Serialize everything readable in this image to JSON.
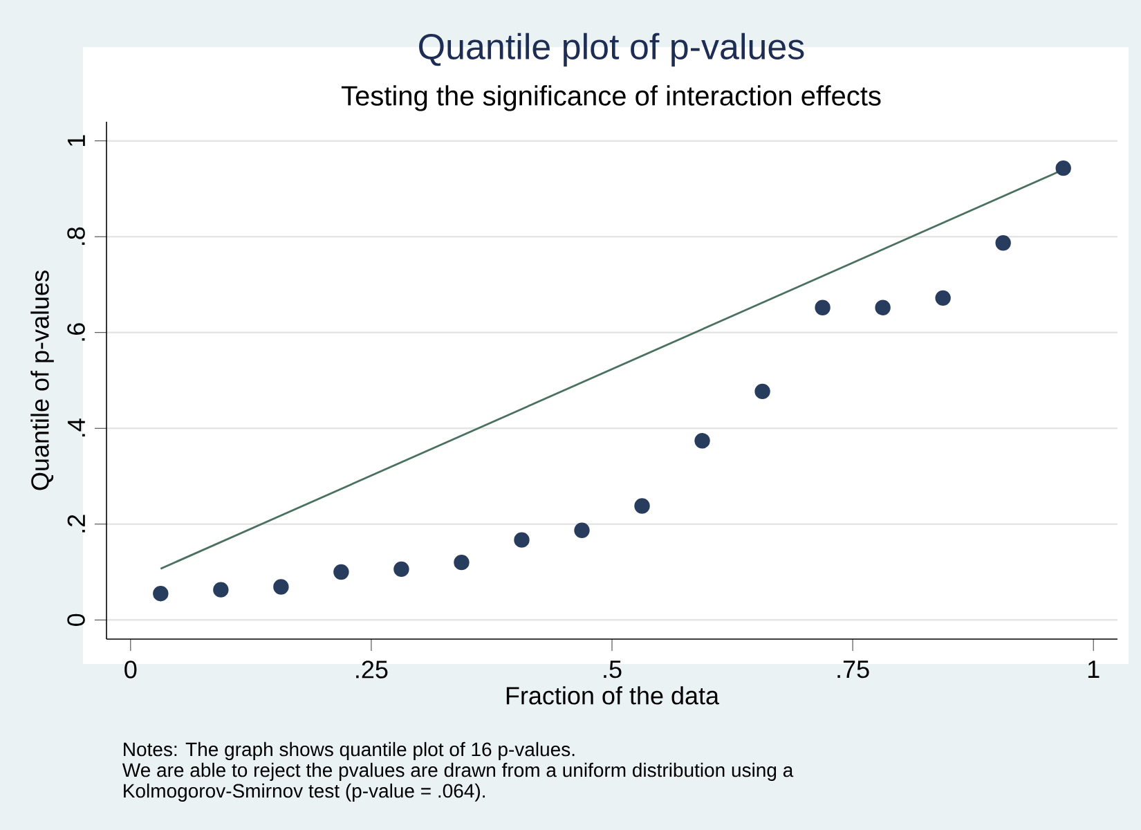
{
  "chart_data": {
    "type": "scatter",
    "title": "Quantile plot of p-values",
    "subtitle": "Testing the significance of interaction effects",
    "xlabel": "Fraction of the data",
    "ylabel": "Quantile of p-values",
    "x": [
      0.03125,
      0.09375,
      0.15625,
      0.21875,
      0.28125,
      0.34375,
      0.40625,
      0.46875,
      0.53125,
      0.59375,
      0.65625,
      0.71875,
      0.78125,
      0.84375,
      0.90625,
      0.96875
    ],
    "series": [
      {
        "marker": "circle",
        "color": "#283c5e",
        "values": [
          0.055,
          0.063,
          0.069,
          0.1,
          0.106,
          0.12,
          0.167,
          0.187,
          0.238,
          0.374,
          0.477,
          0.652,
          0.652,
          0.672,
          0.787,
          0.943
        ]
      },
      {
        "type": "line",
        "marker": "none",
        "color": "#4a7060",
        "x": [
          0.03125,
          0.96875
        ],
        "values": [
          0.107,
          0.94
        ]
      }
    ],
    "xlim": [
      -0.025,
      1.025
    ],
    "ylim": [
      -0.04,
      1.04
    ],
    "xticks": [
      0,
      {
        "value": 0.25,
        "label": ".25"
      },
      {
        "value": 0.5,
        "label": ".5"
      },
      {
        "value": 0.75,
        "label": ".75"
      },
      1
    ],
    "yticks": [
      0,
      {
        "value": 0.2,
        "label": ".2"
      },
      {
        "value": 0.4,
        "label": ".4"
      },
      {
        "value": 0.6,
        "label": ".6"
      },
      {
        "value": 0.8,
        "label": ".8"
      },
      1
    ],
    "grid": "y",
    "annotations": [
      "Notes: The graph shows quantile plot of 16 p-values.",
      "We are able to reject the pvalues are drawn from a uniform distribution using a",
      "Kolmogorov-Smirnov test (p-value = .064)."
    ]
  }
}
